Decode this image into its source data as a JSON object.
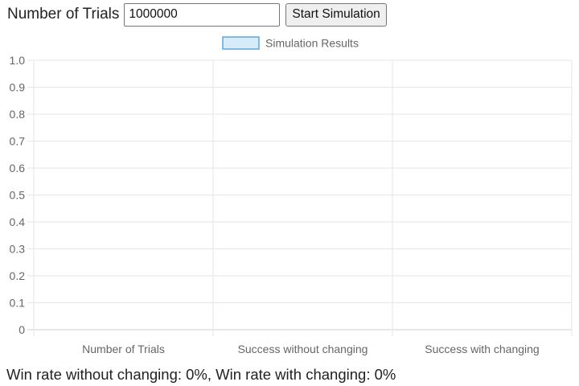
{
  "controls": {
    "trials_label": "Number of Trials",
    "trials_value": "1000000",
    "start_label": "Start Simulation"
  },
  "chart_data": {
    "type": "bar",
    "legend": "Simulation Results",
    "legend_placement": "top-center",
    "legend_color": "#d6ecfb",
    "legend_border_color": "#5ea7d8",
    "categories": [
      "Number of Trials",
      "Success without changing",
      "Success with changing"
    ],
    "values": [
      0,
      0,
      0
    ],
    "yticks": [
      "0",
      "0.1",
      "0.2",
      "0.3",
      "0.4",
      "0.5",
      "0.6",
      "0.7",
      "0.8",
      "0.9",
      "1.0"
    ],
    "ylim": [
      0,
      1.0
    ],
    "grid": true
  },
  "result": {
    "text": "Win rate without changing: 0%, Win rate with changing: 0%"
  }
}
